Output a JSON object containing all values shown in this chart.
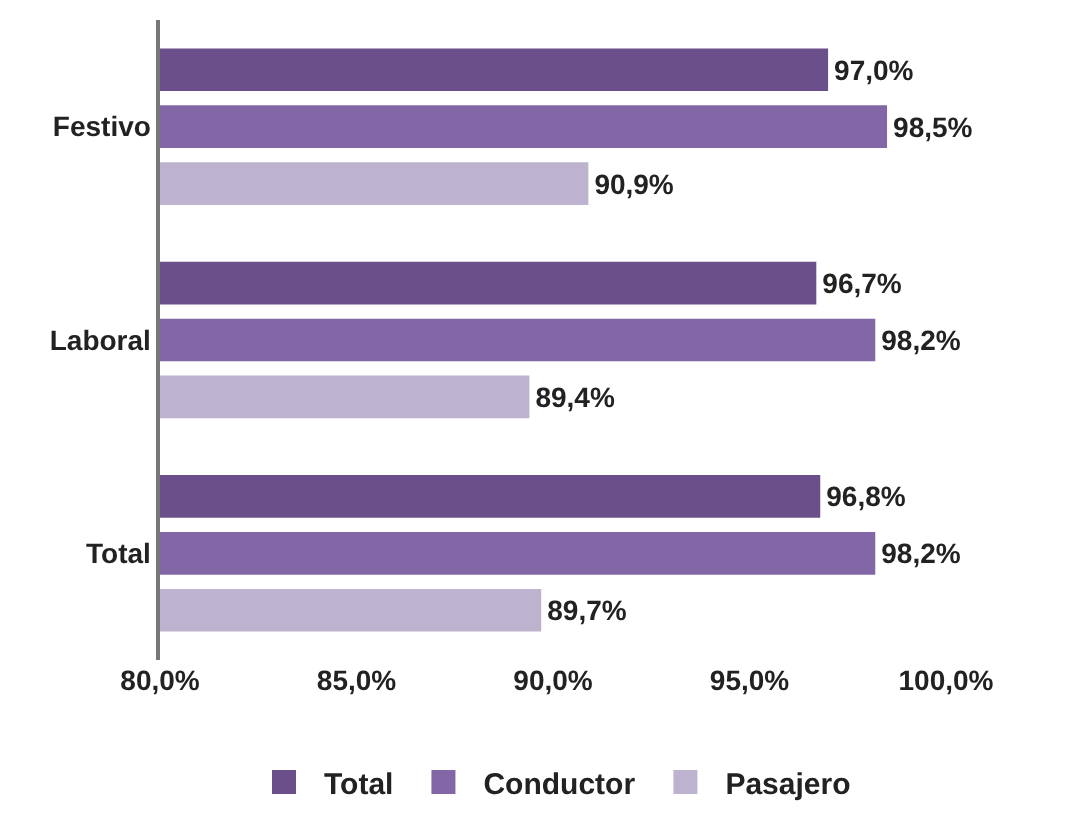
{
  "chart_data": {
    "type": "bar",
    "orientation": "horizontal",
    "categories": [
      "Festivo",
      "Laboral",
      "Total"
    ],
    "series": [
      {
        "name": "Total",
        "color": "#6b4f8a",
        "values": [
          97.0,
          96.7,
          96.8
        ],
        "value_labels": [
          "97,0%",
          "96,7%",
          "96,8%"
        ]
      },
      {
        "name": "Conductor",
        "color": "#8266a6",
        "values": [
          98.5,
          98.2,
          98.2
        ],
        "value_labels": [
          "98,5%",
          "98,2%",
          "98,2%"
        ]
      },
      {
        "name": "Pasajero",
        "color": "#bdb3cf",
        "values": [
          90.9,
          89.4,
          89.7
        ],
        "value_labels": [
          "90,9%",
          "89,4%",
          "89,7%"
        ]
      }
    ],
    "xlim": [
      80,
      100
    ],
    "xticks": [
      {
        "value": 80,
        "label": "80,0%"
      },
      {
        "value": 85,
        "label": "85,0%"
      },
      {
        "value": 90,
        "label": "90,0%"
      },
      {
        "value": 95,
        "label": "95,0%"
      },
      {
        "value": 100,
        "label": "100,0%"
      }
    ],
    "grid": false,
    "legend": "bottom"
  }
}
